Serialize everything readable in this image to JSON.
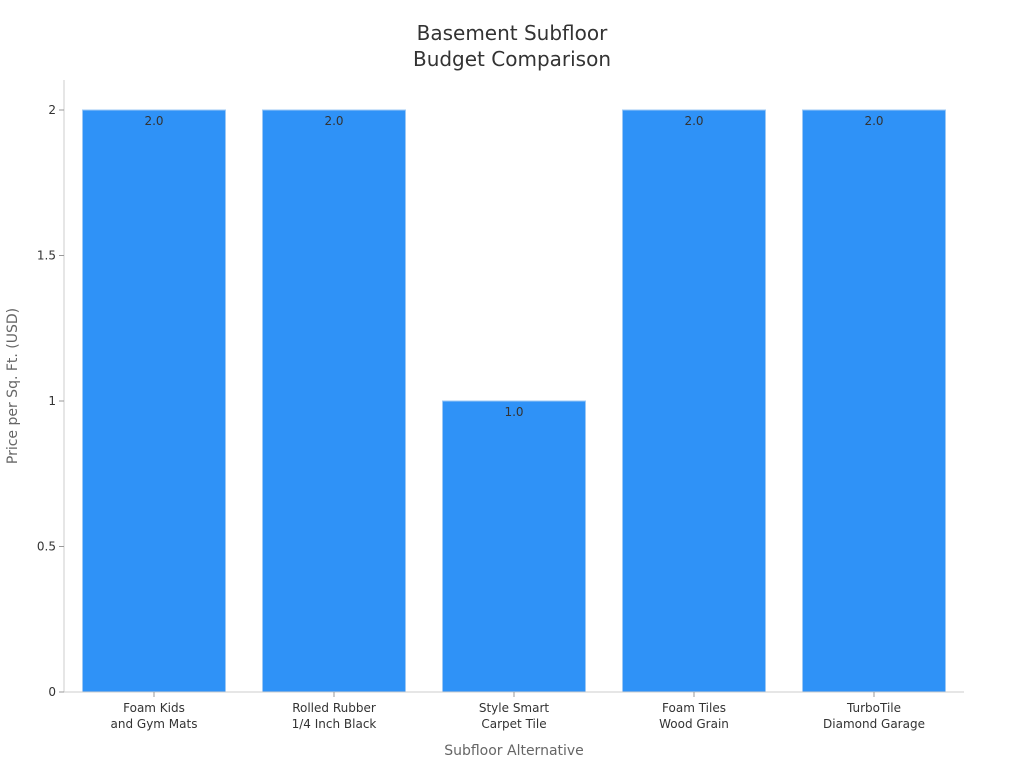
{
  "chart_data": {
    "type": "bar",
    "title_lines": [
      "Basement Subfloor",
      "Budget Comparison"
    ],
    "xlabel": "Subfloor Alternative",
    "ylabel": "Price per Sq. Ft. (USD)",
    "categories": [
      [
        "Foam Kids",
        "and Gym Mats"
      ],
      [
        "Rolled Rubber",
        "1/4 Inch Black"
      ],
      [
        "Style Smart",
        "Carpet Tile"
      ],
      [
        "Foam Tiles",
        "Wood Grain"
      ],
      [
        "TurboTile",
        "Diamond Garage"
      ]
    ],
    "values": [
      2.0,
      2.0,
      1.0,
      2.0,
      2.0
    ],
    "data_labels": [
      "2.0",
      "2.0",
      "1.0",
      "2.0",
      "2.0"
    ],
    "yticks": [
      0,
      0.5,
      1,
      1.5,
      2
    ],
    "ytick_labels": [
      "0",
      "0.5",
      "1",
      "1.5",
      "2"
    ],
    "ylim": [
      0,
      2.1
    ],
    "bar_color": "#2f92f7",
    "grid": false,
    "legend": "none"
  }
}
